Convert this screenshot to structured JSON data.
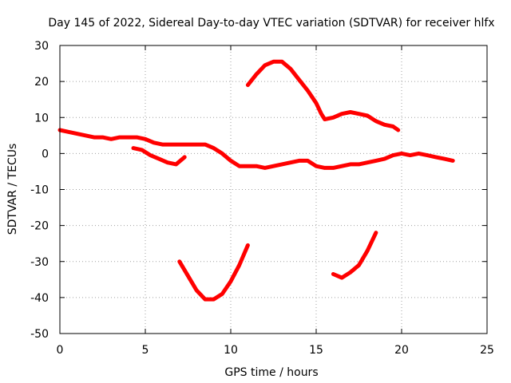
{
  "chart_data": {
    "type": "line",
    "title": "Day 145 of 2022, Sidereal Day-to-day VTEC variation (SDTVAR) for receiver hlfx",
    "xlabel": "GPS time / hours",
    "ylabel": "SDTVAR / TECUs",
    "xlim": [
      0,
      25
    ],
    "ylim": [
      -50,
      30
    ],
    "xticks": [
      "0",
      "5",
      "10",
      "15",
      "20",
      "25"
    ],
    "yticks": [
      "30",
      "20",
      "10",
      "0",
      "-10",
      "-20",
      "-30",
      "-40",
      "-50"
    ],
    "grid": true,
    "series_color": "#ff0000",
    "series": [
      {
        "name": "arc-1",
        "x": [
          0.0,
          0.5,
          1.0,
          1.5,
          2.0,
          2.5,
          3.0,
          3.5,
          4.0,
          4.5,
          5.0,
          5.5,
          6.0,
          6.5,
          7.0,
          7.5,
          8.0,
          8.5,
          9.0,
          9.5,
          10.0,
          10.5,
          11.0,
          11.5,
          12.0,
          12.5,
          13.0,
          13.5,
          14.0,
          14.5,
          15.0,
          15.5,
          16.0,
          16.5,
          17.0,
          17.5,
          18.0,
          18.5,
          19.0,
          19.5,
          20.0,
          20.5,
          21.0,
          21.5,
          22.0,
          22.5,
          23.0
        ],
        "y": [
          6.5,
          6,
          5.5,
          5,
          4.5,
          4.5,
          4,
          4.5,
          4.5,
          4.5,
          4,
          3,
          2.5,
          2.5,
          2.5,
          2.5,
          2.5,
          2.5,
          1.5,
          0,
          -2,
          -3.5,
          -3.5,
          -3.5,
          -4,
          -3.5,
          -3,
          -2.5,
          -2,
          -2,
          -3.5,
          -4,
          -4,
          -3.5,
          -3,
          -3,
          -2.5,
          -2,
          -1.5,
          -0.5,
          0,
          -0.5,
          0,
          -0.5,
          -1,
          -1.5,
          -2
        ]
      },
      {
        "name": "arc-2",
        "x": [
          4.3,
          4.8,
          5.3,
          5.8,
          6.3,
          6.8,
          7.3
        ],
        "y": [
          1.5,
          1,
          -0.5,
          -1.5,
          -2.5,
          -3,
          -1
        ]
      },
      {
        "name": "arc-3",
        "x": [
          11.0,
          11.5,
          12.0,
          12.5,
          13.0,
          13.5,
          14.0,
          14.5,
          15.0,
          15.3,
          15.5,
          16.0,
          16.5,
          17.0,
          17.5,
          18.0,
          18.5,
          19.0,
          19.5,
          19.8
        ],
        "y": [
          19,
          22,
          24.5,
          25.5,
          25.5,
          23.5,
          20.5,
          17.5,
          14,
          11,
          9.5,
          10,
          11,
          11.5,
          11,
          10.5,
          9,
          8,
          7.5,
          6.5
        ]
      },
      {
        "name": "arc-4",
        "x": [
          7.0,
          7.5,
          8.0,
          8.5,
          9.0,
          9.5,
          10.0,
          10.5,
          11.0
        ],
        "y": [
          -30,
          -34,
          -38,
          -40.5,
          -40.5,
          -39,
          -35.5,
          -31,
          -25.5
        ]
      },
      {
        "name": "arc-5",
        "x": [
          16.0,
          16.5,
          17.0,
          17.5,
          18.0,
          18.5
        ],
        "y": [
          -33.5,
          -34.5,
          -33,
          -31,
          -27,
          -22
        ]
      }
    ]
  }
}
